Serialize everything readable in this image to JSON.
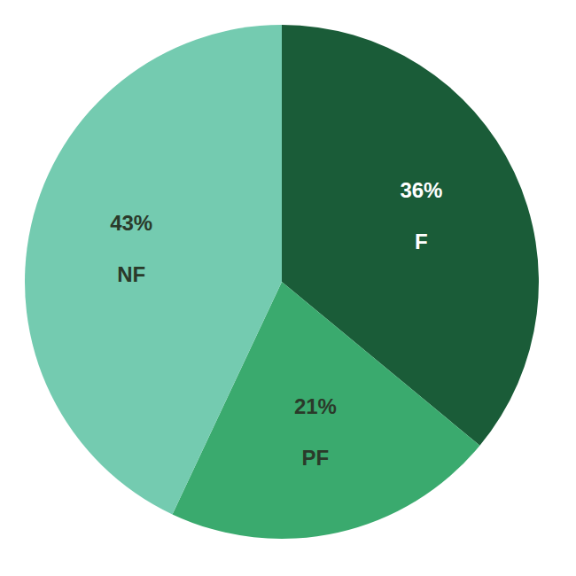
{
  "chart_data": {
    "type": "pie",
    "categories": [
      "F",
      "PF",
      "NF"
    ],
    "values": [
      36,
      21,
      43
    ],
    "value_labels": [
      "36%",
      "21%",
      "43%"
    ],
    "colors": [
      "#1a5c38",
      "#3aaa6e",
      "#74cbb0"
    ]
  }
}
